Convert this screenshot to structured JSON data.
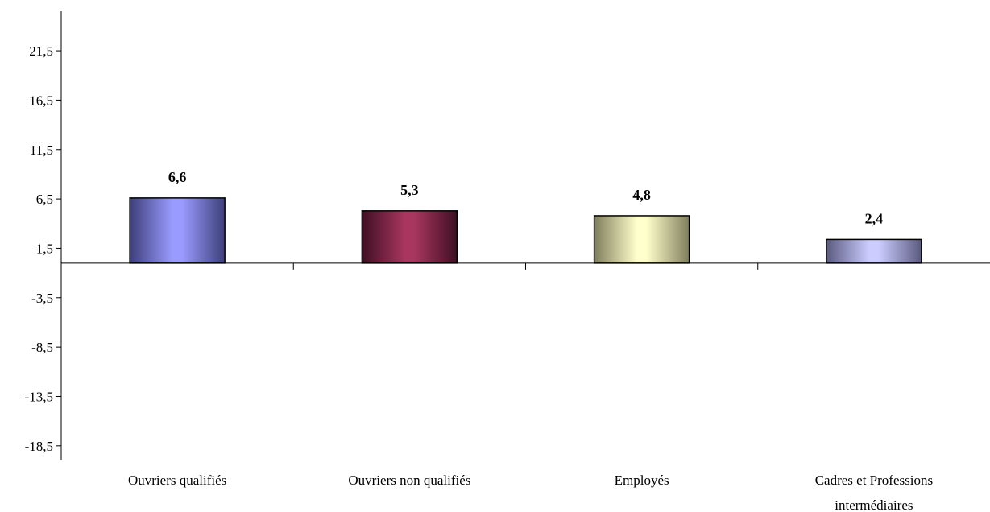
{
  "chart_data": {
    "type": "bar",
    "categories": [
      [
        "Ouvriers qualifiés"
      ],
      [
        "Ouvriers non qualifiés"
      ],
      [
        "Employés"
      ],
      [
        "Cadres et Professions",
        "intermédiaires"
      ]
    ],
    "values": [
      6.6,
      5.3,
      4.8,
      2.4
    ],
    "value_labels": [
      "6,6",
      "5,3",
      "4,8",
      "2,4"
    ],
    "y_ticks": [
      21.5,
      16.5,
      11.5,
      6.5,
      1.5,
      -3.5,
      -8.5,
      -13.5,
      -18.5
    ],
    "y_tick_labels": [
      "21,5",
      "16,5",
      "11,5",
      "6,5",
      "1,5",
      "-3,5",
      "-8,5",
      "-13,5",
      "-18,5"
    ],
    "ylim": [
      -19.9,
      25.5
    ],
    "title": "",
    "xlabel": "",
    "ylabel": "",
    "grid": false,
    "legend": "none",
    "bar_colors": [
      {
        "edge": "#3d3f7a",
        "mid": "#9a9bff"
      },
      {
        "edge": "#3e0f22",
        "mid": "#a8365e"
      },
      {
        "edge": "#7f7e5c",
        "mid": "#ffffcc"
      },
      {
        "edge": "#5a5a80",
        "mid": "#ccccff"
      }
    ]
  }
}
